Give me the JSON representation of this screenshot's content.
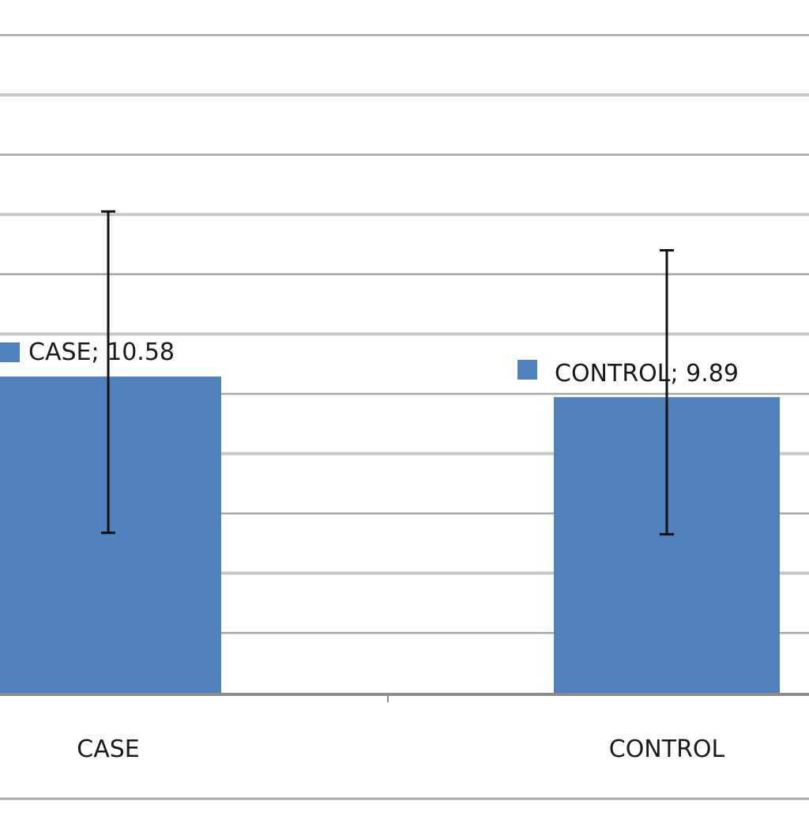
{
  "chart_data": {
    "type": "bar",
    "title": "",
    "xlabel": "",
    "ylabel": "",
    "categories": [
      "CASE",
      "CONTROL"
    ],
    "values": [
      10.58,
      9.89
    ],
    "error_bars": [
      {
        "low": 5.35,
        "high": 16.1
      },
      {
        "low": 5.3,
        "high": 14.8
      }
    ],
    "data_labels": [
      "CASE; 10.58",
      "CONTROL; 9.89"
    ],
    "ylim": [
      0,
      23
    ],
    "grid": true,
    "bar_color": "#4f81bd",
    "error_bar_color": "#111111",
    "gridline_color": "#a6a6a6",
    "gridline_color_major": "#c8c8c8"
  }
}
